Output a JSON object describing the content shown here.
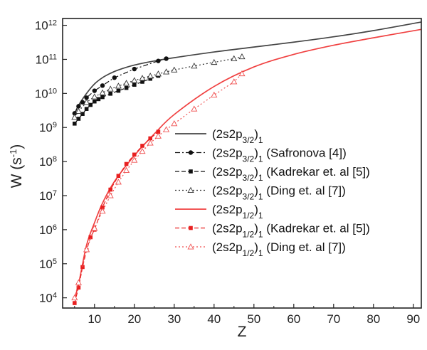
{
  "chart_data": {
    "type": "line",
    "xlabel": "Z",
    "ylabel_main": "W (s",
    "ylabel_exp": "-1",
    "ylabel_close": ")",
    "xlim": [
      2,
      92
    ],
    "ylim_log10": [
      3.7,
      12.2
    ],
    "y_scale": "log",
    "grid": false,
    "legend_position": "center-right",
    "x_ticks": [
      10,
      20,
      30,
      40,
      50,
      60,
      70,
      80,
      90
    ],
    "y_ticks": [
      {
        "value": 4,
        "base": "10",
        "exp": "4"
      },
      {
        "value": 5,
        "base": "10",
        "exp": "5"
      },
      {
        "value": 6,
        "base": "10",
        "exp": "6"
      },
      {
        "value": 7,
        "base": "10",
        "exp": "7"
      },
      {
        "value": 8,
        "base": "10",
        "exp": "8"
      },
      {
        "value": 9,
        "base": "10",
        "exp": "9"
      },
      {
        "value": 10,
        "base": "10",
        "exp": "10"
      },
      {
        "value": 11,
        "base": "10",
        "exp": "11"
      },
      {
        "value": 12,
        "base": "10",
        "exp": "12"
      }
    ],
    "series": [
      {
        "name": "(2s2p3/2)1",
        "legend": {
          "pre": "(2s2p",
          "sub1": "3/2",
          "mid": ")",
          "sub2": "1",
          "post": ""
        },
        "color": "#444444",
        "dash": "",
        "marker": "none",
        "smooth": true,
        "x": [
          5,
          6,
          8,
          10,
          12,
          14,
          16,
          20,
          25,
          30,
          40,
          50,
          60,
          70,
          80,
          92
        ],
        "y": [
          2500000000.0,
          4500000000.0,
          10000000000.0,
          19000000000.0,
          29000000000.0,
          39000000000.0,
          49000000000.0,
          68000000000.0,
          90000000000.0,
          112000000000.0,
          165000000000.0,
          230000000000.0,
          320000000000.0,
          460000000000.0,
          700000000000.0,
          1250000000000.0
        ]
      },
      {
        "name": "(2s2p3/2)1 (Safronova [4])",
        "legend": {
          "pre": "(2s2p",
          "sub1": "3/2",
          "mid": ")",
          "sub2": "1",
          "post": " (Safronova [4])"
        },
        "color": "#111111",
        "dash": "7,3,2,3",
        "marker": "circle",
        "smooth": false,
        "x": [
          5,
          6,
          7,
          8,
          10,
          12,
          15,
          20,
          26,
          28
        ],
        "y": [
          2600000000.0,
          4200000000.0,
          5500000000.0,
          7500000000.0,
          12000000000.0,
          17000000000.0,
          29000000000.0,
          52000000000.0,
          90000000000.0,
          105000000000.0
        ]
      },
      {
        "name": "(2s2p3/2)1 (Kadrekar et. al [5])",
        "legend": {
          "pre": "(2s2p",
          "sub1": "3/2",
          "mid": ")",
          "sub2": "1",
          "post": " (Kadrekar et. al [5])"
        },
        "color": "#111111",
        "dash": "6,3",
        "marker": "square",
        "smooth": false,
        "x": [
          5,
          6,
          7,
          8,
          9,
          10,
          11,
          12,
          14,
          16,
          18,
          20,
          22,
          24,
          26
        ],
        "y": [
          1300000000.0,
          1800000000.0,
          2500000000.0,
          3500000000.0,
          4600000000.0,
          5800000000.0,
          6800000000.0,
          7800000000.0,
          9800000000.0,
          12000000000.0,
          14500000000.0,
          18000000000.0,
          22000000000.0,
          27000000000.0,
          33000000000.0
        ]
      },
      {
        "name": "(2s2p3/2)1 (Ding et. al [7])",
        "legend": {
          "pre": "(2s2p",
          "sub1": "3/2",
          "mid": ")",
          "sub2": "1",
          "post": " (Ding et. al [7])"
        },
        "color": "#333333",
        "dash": "2,3",
        "marker": "triangle",
        "smooth": false,
        "x": [
          5,
          6,
          8,
          10,
          12,
          14,
          16,
          18,
          20,
          22,
          24,
          26,
          28,
          30,
          35,
          40,
          45,
          47
        ],
        "y": [
          2000000000.0,
          3000000000.0,
          5500000000.0,
          8000000000.0,
          10500000000.0,
          13500000000.0,
          16500000000.0,
          20000000000.0,
          24000000000.0,
          28000000000.0,
          32500000000.0,
          37500000000.0,
          43000000000.0,
          49000000000.0,
          64000000000.0,
          82000000000.0,
          105000000000.0,
          120000000000.0
        ]
      },
      {
        "name": "(2s2p1/2)1",
        "legend": {
          "pre": "(2s2p",
          "sub1": "1/2",
          "mid": ")",
          "sub2": "1",
          "post": ""
        },
        "color": "#f04040",
        "dash": "",
        "marker": "none",
        "smooth": true,
        "x": [
          5,
          6,
          8,
          10,
          12,
          15,
          20,
          25,
          30,
          40,
          50,
          60,
          70,
          80,
          92
        ],
        "y": [
          10000.0,
          25000.0,
          350000.0,
          1600000.0,
          6000000.0,
          26000000.0,
          150000000.0,
          650000000.0,
          2400000000.0,
          16000000000.0,
          60000000000.0,
          140000000000.0,
          260000000000.0,
          430000000000.0,
          760000000000.0
        ]
      },
      {
        "name": "(2s2p1/2)1 (Kadrekar et. al [5])",
        "legend": {
          "pre": "(2s2p",
          "sub1": "1/2",
          "mid": ")",
          "sub2": "1",
          "post": " (Kadrekar et. al [5])"
        },
        "color": "#e82020",
        "dash": "6,3",
        "marker": "square",
        "smooth": false,
        "x": [
          5,
          6,
          7,
          8,
          9,
          10,
          12,
          14,
          16,
          18,
          20,
          22,
          24,
          26
        ],
        "y": [
          7000.0,
          20000.0,
          80000.0,
          250000.0,
          600000.0,
          1000000.0,
          4500000.0,
          15000000.0,
          38000000.0,
          85000000.0,
          160000000.0,
          290000000.0,
          480000000.0,
          750000000.0
        ]
      },
      {
        "name": "(2s2p1/2)1 (Ding et. al [7])",
        "legend": {
          "pre": "(2s2p",
          "sub1": "1/2",
          "mid": ")",
          "sub2": "1",
          "post": " (Ding et. al [7])"
        },
        "color": "#f05050",
        "dash": "2,3",
        "marker": "triangle",
        "smooth": false,
        "x": [
          5,
          6,
          8,
          10,
          12,
          14,
          16,
          18,
          20,
          22,
          24,
          26,
          28,
          30,
          35,
          40,
          45,
          47
        ],
        "y": [
          10000.0,
          28000.0,
          260000.0,
          1100000.0,
          3500000.0,
          10000000.0,
          25000000.0,
          55000000.0,
          110000000.0,
          200000000.0,
          350000000.0,
          560000000.0,
          870000000.0,
          1300000000.0,
          3500000000.0,
          9000000000.0,
          22000000000.0,
          38000000000.0
        ]
      }
    ]
  }
}
